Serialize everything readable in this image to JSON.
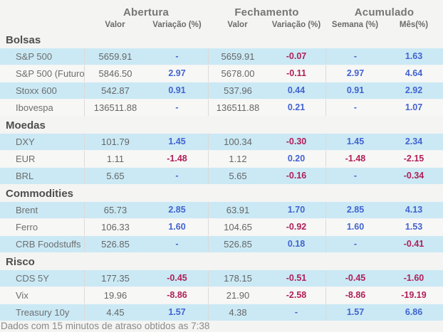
{
  "header": {
    "groups": [
      "Abertura",
      "Fechamento",
      "Acumulado"
    ],
    "subheaders": [
      "Valor",
      "Variação (%)",
      "Valor",
      "Variação (%)",
      "Semana (%)",
      "Mês(%)"
    ]
  },
  "sections": [
    {
      "title": "Bolsas",
      "rows": [
        {
          "label": "S&P 500",
          "cells": [
            "5659.91",
            "-",
            "5659.91",
            "-0.07",
            "-",
            "1.63"
          ]
        },
        {
          "label": "S&P 500 (Futuro)",
          "cells": [
            "5846.50",
            "2.97",
            "5678.00",
            "-0.11",
            "2.97",
            "4.64"
          ]
        },
        {
          "label": "Stoxx 600",
          "cells": [
            "542.87",
            "0.91",
            "537.96",
            "0.44",
            "0.91",
            "2.92"
          ]
        },
        {
          "label": "Ibovespa",
          "cells": [
            "136511.88",
            "-",
            "136511.88",
            "0.21",
            "-",
            "1.07"
          ]
        }
      ]
    },
    {
      "title": "Moedas",
      "rows": [
        {
          "label": "DXY",
          "cells": [
            "101.79",
            "1.45",
            "100.34",
            "-0.30",
            "1.45",
            "2.34"
          ]
        },
        {
          "label": "EUR",
          "cells": [
            "1.11",
            "-1.48",
            "1.12",
            "0.20",
            "-1.48",
            "-2.15"
          ]
        },
        {
          "label": "BRL",
          "cells": [
            "5.65",
            "-",
            "5.65",
            "-0.16",
            "-",
            "-0.34"
          ]
        }
      ]
    },
    {
      "title": "Commodities",
      "rows": [
        {
          "label": "Brent",
          "cells": [
            "65.73",
            "2.85",
            "63.91",
            "1.70",
            "2.85",
            "4.13"
          ]
        },
        {
          "label": "Ferro",
          "cells": [
            "106.33",
            "1.60",
            "104.65",
            "-0.92",
            "1.60",
            "1.53"
          ]
        },
        {
          "label": "CRB Foodstuffs",
          "cells": [
            "526.85",
            "-",
            "526.85",
            "0.18",
            "-",
            "-0.41"
          ]
        }
      ]
    },
    {
      "title": "Risco",
      "rows": [
        {
          "label": "CDS 5Y",
          "cells": [
            "177.35",
            "-0.45",
            "178.15",
            "-0.51",
            "-0.45",
            "-1.60"
          ]
        },
        {
          "label": "Vix",
          "cells": [
            "19.96",
            "-8.86",
            "21.90",
            "-2.58",
            "-8.86",
            "-19.19"
          ]
        },
        {
          "label": "Treasury 10y",
          "cells": [
            "4.45",
            "1.57",
            "4.38",
            "-",
            "1.57",
            "6.86"
          ]
        }
      ]
    }
  ],
  "footer": {
    "note": "Dados com 15 minutos de atraso obtidos as 7:38"
  },
  "colors": {
    "positive_blue": "#4263cf",
    "negative_red": "#b02058",
    "row_blue": "#cae9f5",
    "row_gray": "#f7f7f6",
    "page_background": "#f4f4f3"
  }
}
